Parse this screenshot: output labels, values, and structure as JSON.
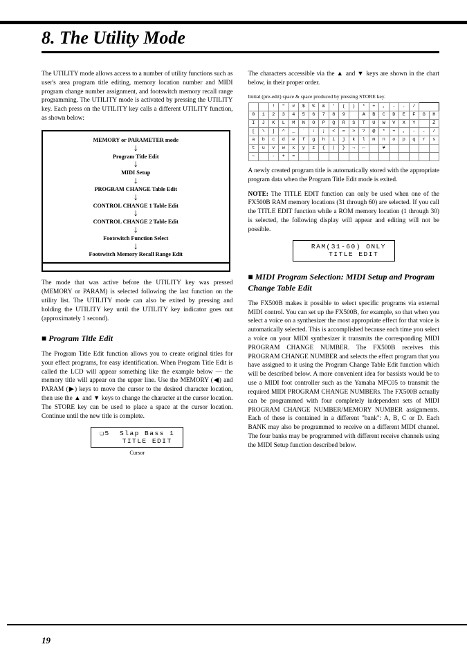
{
  "page_number": "19",
  "title": "8. The Utility Mode",
  "left": {
    "intro": "The UTILITY mode allows access to a number of utility functions such as user's area program title editing, memory location number and MIDI program change number assignment, and footswitch memory recall range programming. The UTILITY mode is activated by pressing the UTILITY key. Each press on the UTILITY key calls a different UTILITY function, as shown below:",
    "flow": {
      "items": [
        "MEMORY or PARAMETER mode",
        "Program Title Edit",
        "MIDI Setup",
        "PROGRAM CHANGE Table Edit",
        "CONTROL CHANGE 1 Table Edit",
        "CONTROL CHANGE 2 Table Edit",
        "Footswitch Function Select",
        "Footswitch Memory Recall Range Edit"
      ]
    },
    "after_flow": "The mode that was active before the UTILITY key was pressed (MEMORY or PARAM) is selected following the last function on the utility list. The UTILITY mode can also be exited by pressing and holding the UTILITY key until the UTILITY key indicator goes out (approximately 1 second).",
    "section_title": "Program Title Edit",
    "section_body": "The Program Title Edit function allows you to create original titles for your effect programs, for easy identification. When Program Title Edit is called the LCD will appear something like the example below — the memory title will appear on the upper line. Use the MEMORY (◀) and PARAM (▶) keys to move the cursor to the desired character location, then use the ▲ and ▼ keys to change the character at the cursor location. The STORE key can be used to place a space at the cursor location. Continue until the new title is complete.",
    "lcd": "❏5  Slap Bass 1\n    TITLE EDIT",
    "cursor_label": "Cursor"
  },
  "right": {
    "intro": "The characters accessible via the ▲ and ▼ keys are shown in the chart below, in their proper order.",
    "chart_caption": "Initial (pre-edit) space & space produced by pressing STORE key.",
    "chartable": [
      [
        " ",
        " ",
        "!",
        "\"",
        "#",
        "$",
        "%",
        "&",
        "'",
        "(",
        ")",
        "*",
        "+",
        ",",
        "-",
        ".",
        "/"
      ],
      [
        "0",
        "1",
        "2",
        "3",
        "4",
        "5",
        "6",
        "7",
        "8",
        "9",
        " ",
        "A",
        "B",
        "C",
        "D",
        "E",
        "F",
        "G",
        "H"
      ],
      [
        "I",
        "J",
        "K",
        "L",
        "M",
        "N",
        "O",
        "P",
        "Q",
        "R",
        "S",
        "T",
        "U",
        "W",
        "V",
        "X",
        "Y",
        " ",
        "Z"
      ],
      [
        "[",
        "\\",
        "]",
        "^",
        "_",
        "`",
        ":",
        ";",
        "<",
        "=",
        ">",
        "?",
        "@",
        "*",
        "+",
        ",",
        "-",
        ".",
        "/"
      ],
      [
        "a",
        "b",
        "c",
        "d",
        "e",
        "f",
        "g",
        "h",
        "i",
        "j",
        "k",
        "l",
        "m",
        "n",
        "o",
        "p",
        "q",
        "r",
        "s"
      ],
      [
        "t",
        "u",
        "v",
        "w",
        "x",
        "y",
        "z",
        "{",
        "|",
        "}",
        "→",
        "←",
        " ",
        "¥",
        " ",
        " ",
        " ",
        " ",
        " "
      ],
      [
        "~",
        " ",
        "-",
        "+",
        "=",
        " ",
        " ",
        " ",
        " ",
        " ",
        " ",
        " ",
        " ",
        " ",
        " ",
        " ",
        " ",
        " ",
        " "
      ]
    ],
    "after_chart": "A newly created program title is automatically stored with the appropriate program data when the Program Title Edit mode is exited.",
    "note_label": "NOTE:",
    "note_body": "The TITLE EDIT function can only be used when one of the FX500B RAM memory locations (31 through 60) are selected. If you call the TITLE EDIT function while a ROM memory location (1 through 30) is selected, the following display will appear and editing will not be possible.",
    "lcd": "  RAM(31-60) ONLY\n    TITLE EDIT",
    "section_title": "MIDI Program Selection: MIDI Setup and Program Change Table Edit",
    "section_body": "The FX500B makes it possible to select specific programs via external MIDI control. You can set up the FX500B, for example, so that when you select a voice on a synthesizer the most appropriate effect for that voice is automatically selected. This is accomplished because each time you select a voice on your MIDI synthesizer it transmits the corresponding MIDI PROGRAM CHANGE NUMBER. The FX500B receives this PROGRAM CHANGE NUMBER and selects the effect program that you have assigned to it using the Program Change Table Edit function which will be described below. A more convenient idea for bassists would be to use a MIDI foot controller such as the Yamaha MFC05 to transmit the required MIDI PROGRAM CHANGE NUMBERs. The FX500B actually can be programmed with four completely independent sets of MIDI PROGRAM CHANGE NUMBER/MEMORY NUMBER assignments. Each of these is contained in a different \"bank\": A, B, C or D. Each BANK may also be programmed to receive on a different MIDI channel. The four banks may be programmed with different receive channels using the MIDI Setup function described below."
  }
}
